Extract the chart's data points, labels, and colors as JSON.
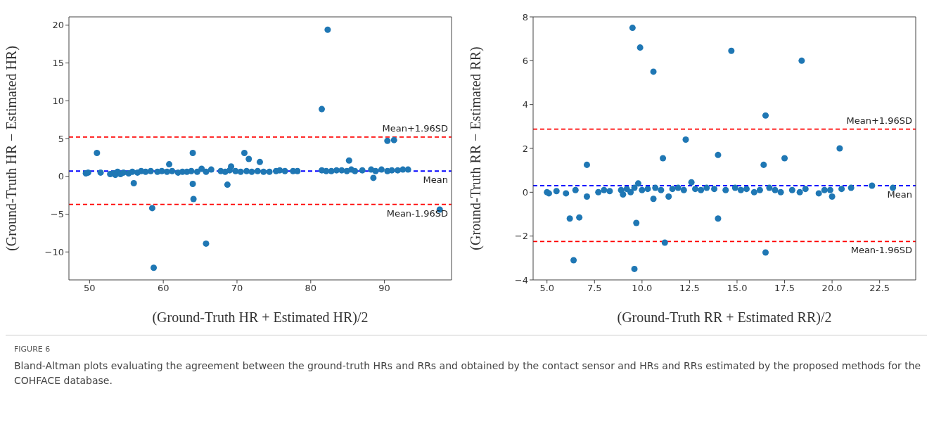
{
  "chart_data": [
    {
      "type": "scatter",
      "xlabel": "(Ground-Truth HR + Estimated HR)/2",
      "ylabel": "(Ground-Truth HR − Estimated HR)",
      "color": "#1f77b4",
      "marker": "circle",
      "grid": false,
      "legend": false,
      "xlim": [
        47.2,
        99.1
      ],
      "ylim": [
        -13.7,
        21.1
      ],
      "xticks": [
        50,
        60,
        70,
        80,
        90
      ],
      "yticks": [
        -10,
        -5,
        0,
        5,
        10,
        15,
        20
      ],
      "x": [
        51,
        56,
        58.5,
        58.7,
        60.8,
        64,
        64,
        64.1,
        65.8,
        68.7,
        69.2,
        71,
        71.6,
        73.1,
        81.5,
        82.3,
        85.2,
        88.5,
        90.4,
        91.3,
        97.5,
        49.5,
        49.8,
        51.5,
        52.8,
        53.2,
        53.5,
        53.8,
        54.2,
        54.6,
        55.3,
        55.8,
        56.5,
        57.0,
        57.6,
        58.3,
        59.2,
        59.8,
        60.5,
        61.2,
        62.0,
        62.6,
        63.2,
        63.8,
        64.6,
        65.2,
        65.8,
        66.5,
        67.8,
        68.4,
        69.0,
        69.8,
        70.5,
        71.3,
        72.0,
        72.8,
        73.6,
        74.4,
        75.3,
        75.8,
        76.5,
        77.6,
        78.2,
        81.5,
        82.1,
        82.8,
        83.5,
        84.2,
        84.9,
        85.5,
        86.0,
        87.0,
        88.2,
        88.8,
        89.6,
        90.4,
        91.0,
        91.8,
        92.5,
        93.2
      ],
      "values": [
        3.1,
        -0.9,
        -4.2,
        -12.1,
        1.6,
        3.1,
        -1,
        -3,
        -8.9,
        -1.1,
        1.3,
        3.1,
        2.3,
        1.9,
        8.9,
        19.4,
        2.1,
        -0.2,
        4.7,
        4.8,
        -4.4,
        0.4,
        0.5,
        0.5,
        0.3,
        0.4,
        0.2,
        0.6,
        0.3,
        0.5,
        0.4,
        0.6,
        0.5,
        0.7,
        0.6,
        0.7,
        0.6,
        0.7,
        0.6,
        0.7,
        0.5,
        0.6,
        0.6,
        0.7,
        0.6,
        1.0,
        0.6,
        0.9,
        0.7,
        0.6,
        0.8,
        0.7,
        0.6,
        0.7,
        0.6,
        0.7,
        0.6,
        0.6,
        0.7,
        0.8,
        0.7,
        0.7,
        0.7,
        0.8,
        0.7,
        0.7,
        0.8,
        0.8,
        0.7,
        0.9,
        0.7,
        0.8,
        0.9,
        0.7,
        0.9,
        0.7,
        0.8,
        0.8,
        0.9,
        0.9
      ],
      "ref_lines": [
        {
          "axis": "y",
          "value": 5.2,
          "label": "Mean+1.96SD",
          "color": "#ff0000",
          "line_style": "dashed"
        },
        {
          "axis": "y",
          "value": 0.7,
          "label": "Mean",
          "color": "#0000ff",
          "line_style": "dashed"
        },
        {
          "axis": "y",
          "value": -3.7,
          "label": "Mean-1.96SD",
          "color": "#ff0000",
          "line_style": "dashed"
        }
      ],
      "annotations": [
        "FIGURE 6",
        "Bland-Altman plots evaluating the agreement between the ground-truth HRs and RRs and obtained by the contact sensor and HRs and RRs estimated by the proposed methods for the COHFACE database."
      ]
    },
    {
      "type": "scatter",
      "xlabel": "(Ground-Truth RR + Estimated RR)/2",
      "ylabel": "(Ground-Truth RR − Estimated RR)",
      "color": "#1f77b4",
      "marker": "circle",
      "grid": false,
      "legend": false,
      "xlim": [
        4.27,
        24.4
      ],
      "ylim": [
        -4,
        8
      ],
      "xticks": [
        {
          "value": 5,
          "label": "5.0"
        },
        {
          "value": 7.5,
          "label": "7.5"
        },
        {
          "value": 10,
          "label": "10.0"
        },
        {
          "value": 12.5,
          "label": "12.5"
        },
        {
          "value": 15,
          "label": "15.0"
        },
        {
          "value": 17.5,
          "label": "17.5"
        },
        {
          "value": 20,
          "label": "20.0"
        },
        {
          "value": 22.5,
          "label": "22.5"
        }
      ],
      "yticks": [
        -4,
        -2,
        0,
        2,
        4,
        6,
        8
      ],
      "x": [
        9.5,
        9.9,
        10.6,
        14.7,
        18.4,
        16.5,
        12.3,
        20.4,
        7.1,
        11.1,
        14.0,
        16.4,
        17.5,
        6.2,
        6.7,
        6.4,
        9.6,
        9.7,
        11.2,
        14.0,
        16.5,
        7.1,
        10.6,
        11.4,
        20.0,
        23.2,
        22.1,
        9.8,
        12.6,
        5.0,
        5.1,
        5.5,
        6.0,
        6.5,
        7.7,
        8.0,
        8.3,
        8.9,
        9.0,
        9.2,
        9.4,
        9.6,
        10.0,
        10.3,
        10.7,
        11.0,
        11.6,
        11.9,
        12.2,
        12.8,
        13.1,
        13.4,
        13.8,
        14.4,
        14.9,
        15.2,
        15.5,
        15.9,
        16.2,
        16.7,
        17.0,
        17.3,
        17.9,
        18.3,
        18.6,
        19.3,
        19.6,
        19.9,
        20.5,
        21.0
      ],
      "values": [
        7.5,
        6.6,
        5.5,
        6.45,
        6.0,
        3.5,
        2.4,
        2.0,
        1.25,
        1.55,
        1.7,
        1.25,
        1.55,
        -1.2,
        -1.15,
        -3.1,
        -3.5,
        -1.4,
        -2.3,
        -1.2,
        -2.75,
        -0.2,
        -0.3,
        -0.2,
        -0.2,
        0.2,
        0.3,
        0.4,
        0.45,
        0,
        -0.05,
        0.05,
        -0.05,
        0.1,
        0.0,
        0.1,
        0.05,
        0.1,
        -0.1,
        0.15,
        0.0,
        0.2,
        0.1,
        0.15,
        0.2,
        0.1,
        0.15,
        0.2,
        0.1,
        0.15,
        0.1,
        0.2,
        0.15,
        0.1,
        0.2,
        0.1,
        0.15,
        0.0,
        0.1,
        0.2,
        0.1,
        0.0,
        0.1,
        0.0,
        0.15,
        -0.05,
        0.1,
        0.1,
        0.15,
        0.2
      ],
      "ref_lines": [
        {
          "axis": "y",
          "value": 2.88,
          "label": "Mean+1.96SD",
          "color": "#ff0000",
          "line_style": "dashed"
        },
        {
          "axis": "y",
          "value": 0.3,
          "label": "Mean",
          "color": "#0000ff",
          "line_style": "dashed"
        },
        {
          "axis": "y",
          "value": -2.25,
          "label": "Mean-1.96SD",
          "color": "#ff0000",
          "line_style": "dashed"
        }
      ]
    }
  ]
}
